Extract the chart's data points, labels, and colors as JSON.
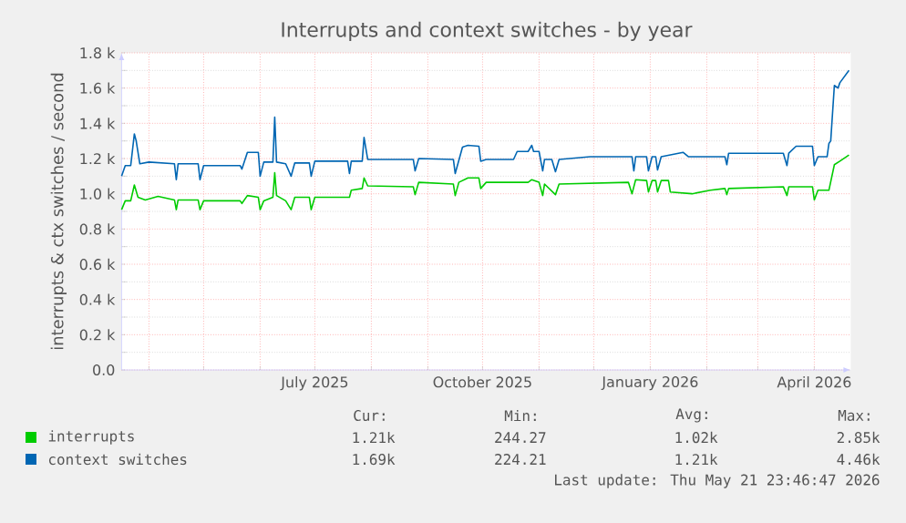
{
  "chart_data": {
    "type": "line",
    "title": "Interrupts and context switches - by year",
    "ylabel": "interrupts & ctx switches / second",
    "xlim": [
      "2025-03-17",
      "2026-04-21"
    ],
    "ylim": [
      0,
      1800
    ],
    "xticks": [
      {
        "value": "2025-04-01",
        "label": null
      },
      {
        "value": "2025-05-01",
        "label": null
      },
      {
        "value": "2025-06-01",
        "label": null
      },
      {
        "value": "2025-07-01",
        "label": "July 2025"
      },
      {
        "value": "2025-08-01",
        "label": null
      },
      {
        "value": "2025-09-01",
        "label": null
      },
      {
        "value": "2025-10-01",
        "label": "October 2025"
      },
      {
        "value": "2025-11-01",
        "label": null
      },
      {
        "value": "2025-12-01",
        "label": null
      },
      {
        "value": "2026-01-01",
        "label": "January 2026"
      },
      {
        "value": "2026-02-01",
        "label": null
      },
      {
        "value": "2026-03-01",
        "label": null
      },
      {
        "value": "2026-04-01",
        "label": "April 2026"
      }
    ],
    "yticks": [
      {
        "value": 0,
        "label": "0.0"
      },
      {
        "value": 200,
        "label": "0.2 k"
      },
      {
        "value": 400,
        "label": "0.4 k"
      },
      {
        "value": 600,
        "label": "0.6 k"
      },
      {
        "value": 800,
        "label": "0.8 k"
      },
      {
        "value": 1000,
        "label": "1.0 k"
      },
      {
        "value": 1200,
        "label": "1.2 k"
      },
      {
        "value": 1400,
        "label": "1.4 k"
      },
      {
        "value": 1600,
        "label": "1.6 k"
      },
      {
        "value": 1800,
        "label": "1.8 k"
      }
    ],
    "grid": true,
    "legend": "bottom",
    "marker": "none",
    "line_style": "solid",
    "annotations": [
      "Cur:",
      "Min:",
      "Avg:",
      "Max:",
      "1.21k",
      "244.27",
      "1.02k",
      "2.85k",
      "1.69k",
      "224.21",
      "1.21k",
      "4.46k",
      "Last update: Thu May 21 23:46:47 2026"
    ],
    "series": [
      {
        "name": "interrupts",
        "color": "#00cc00",
        "x": [
          "2025-03-17",
          "2025-03-19",
          "2025-03-22",
          "2025-03-24",
          "2025-03-26",
          "2025-03-30",
          "2025-04-06",
          "2025-04-15",
          "2025-04-16",
          "2025-04-17",
          "2025-04-28",
          "2025-04-29",
          "2025-05-01",
          "2025-05-21",
          "2025-05-22",
          "2025-05-25",
          "2025-05-31",
          "2025-06-01",
          "2025-06-03",
          "2025-06-08",
          "2025-06-09",
          "2025-06-10",
          "2025-06-15",
          "2025-06-18",
          "2025-06-20",
          "2025-06-28",
          "2025-06-29",
          "2025-07-01",
          "2025-07-20",
          "2025-07-21",
          "2025-07-27",
          "2025-07-28",
          "2025-07-30",
          "2025-08-24",
          "2025-08-25",
          "2025-08-27",
          "2025-09-15",
          "2025-09-16",
          "2025-09-18",
          "2025-09-23",
          "2025-09-29",
          "2025-09-30",
          "2025-10-03",
          "2025-10-26",
          "2025-10-28",
          "2025-11-01",
          "2025-11-03",
          "2025-11-04",
          "2025-11-10",
          "2025-11-12",
          "2025-12-20",
          "2025-12-22",
          "2025-12-24",
          "2025-12-30",
          "2025-12-31",
          "2026-01-02",
          "2026-01-04",
          "2026-01-05",
          "2026-01-07",
          "2026-01-11",
          "2026-01-12",
          "2026-01-24",
          "2026-02-03",
          "2026-02-11",
          "2026-02-12",
          "2026-02-13",
          "2026-03-15",
          "2026-03-17",
          "2026-03-18",
          "2026-03-31",
          "2026-04-01",
          "2026-04-03",
          "2026-04-09",
          "2026-04-12",
          "2026-04-15",
          "2026-04-20"
        ],
        "values": [
          910,
          960,
          960,
          1050,
          980,
          965,
          985,
          965,
          910,
          965,
          965,
          910,
          960,
          960,
          945,
          990,
          980,
          910,
          960,
          980,
          1120,
          990,
          960,
          910,
          980,
          980,
          910,
          980,
          980,
          1020,
          1030,
          1090,
          1045,
          1040,
          995,
          1065,
          1055,
          990,
          1065,
          1090,
          1090,
          1030,
          1065,
          1065,
          1080,
          1065,
          990,
          1055,
          995,
          1055,
          1065,
          1000,
          1080,
          1075,
          1010,
          1075,
          1075,
          1010,
          1075,
          1075,
          1010,
          1000,
          1020,
          1030,
          995,
          1030,
          1040,
          990,
          1040,
          1040,
          965,
          1020,
          1020,
          1165,
          1185,
          1220
        ]
      },
      {
        "name": "context switches",
        "color": "#0066b3",
        "x": [
          "2025-03-17",
          "2025-03-19",
          "2025-03-22",
          "2025-03-24",
          "2025-03-25",
          "2025-03-27",
          "2025-04-01",
          "2025-04-15",
          "2025-04-16",
          "2025-04-17",
          "2025-04-28",
          "2025-04-29",
          "2025-05-01",
          "2025-05-21",
          "2025-05-22",
          "2025-05-25",
          "2025-05-31",
          "2025-06-01",
          "2025-06-03",
          "2025-06-08",
          "2025-06-09",
          "2025-06-10",
          "2025-06-15",
          "2025-06-18",
          "2025-06-20",
          "2025-06-28",
          "2025-06-29",
          "2025-07-01",
          "2025-07-19",
          "2025-07-20",
          "2025-07-21",
          "2025-07-27",
          "2025-07-28",
          "2025-07-30",
          "2025-08-24",
          "2025-08-25",
          "2025-08-27",
          "2025-09-15",
          "2025-09-16",
          "2025-09-20",
          "2025-09-23",
          "2025-09-29",
          "2025-09-30",
          "2025-10-03",
          "2025-10-18",
          "2025-10-20",
          "2025-10-26",
          "2025-10-28",
          "2025-10-29",
          "2025-11-01",
          "2025-11-03",
          "2025-11-04",
          "2025-11-08",
          "2025-11-10",
          "2025-11-12",
          "2025-11-29",
          "2025-12-22",
          "2025-12-23",
          "2025-12-24",
          "2025-12-30",
          "2025-12-31",
          "2026-01-02",
          "2026-01-04",
          "2026-01-05",
          "2026-01-07",
          "2026-01-19",
          "2026-01-22",
          "2026-02-11",
          "2026-02-12",
          "2026-02-13",
          "2026-03-15",
          "2026-03-17",
          "2026-03-18",
          "2026-03-22",
          "2026-03-31",
          "2026-04-01",
          "2026-04-03",
          "2026-04-08",
          "2026-04-09",
          "2026-04-10",
          "2026-04-12",
          "2026-04-14",
          "2026-04-15",
          "2026-04-20"
        ],
        "values": [
          1100,
          1160,
          1160,
          1340,
          1300,
          1170,
          1180,
          1170,
          1080,
          1170,
          1170,
          1080,
          1160,
          1160,
          1140,
          1235,
          1235,
          1100,
          1180,
          1180,
          1435,
          1180,
          1170,
          1100,
          1175,
          1175,
          1100,
          1185,
          1185,
          1115,
          1185,
          1185,
          1320,
          1195,
          1195,
          1130,
          1200,
          1195,
          1115,
          1265,
          1275,
          1270,
          1185,
          1195,
          1195,
          1240,
          1240,
          1275,
          1240,
          1240,
          1130,
          1195,
          1195,
          1125,
          1195,
          1210,
          1210,
          1130,
          1210,
          1210,
          1130,
          1210,
          1210,
          1135,
          1210,
          1235,
          1210,
          1210,
          1165,
          1230,
          1230,
          1160,
          1230,
          1270,
          1270,
          1160,
          1210,
          1210,
          1285,
          1300,
          1615,
          1600,
          1630,
          1700
        ]
      }
    ]
  }
}
